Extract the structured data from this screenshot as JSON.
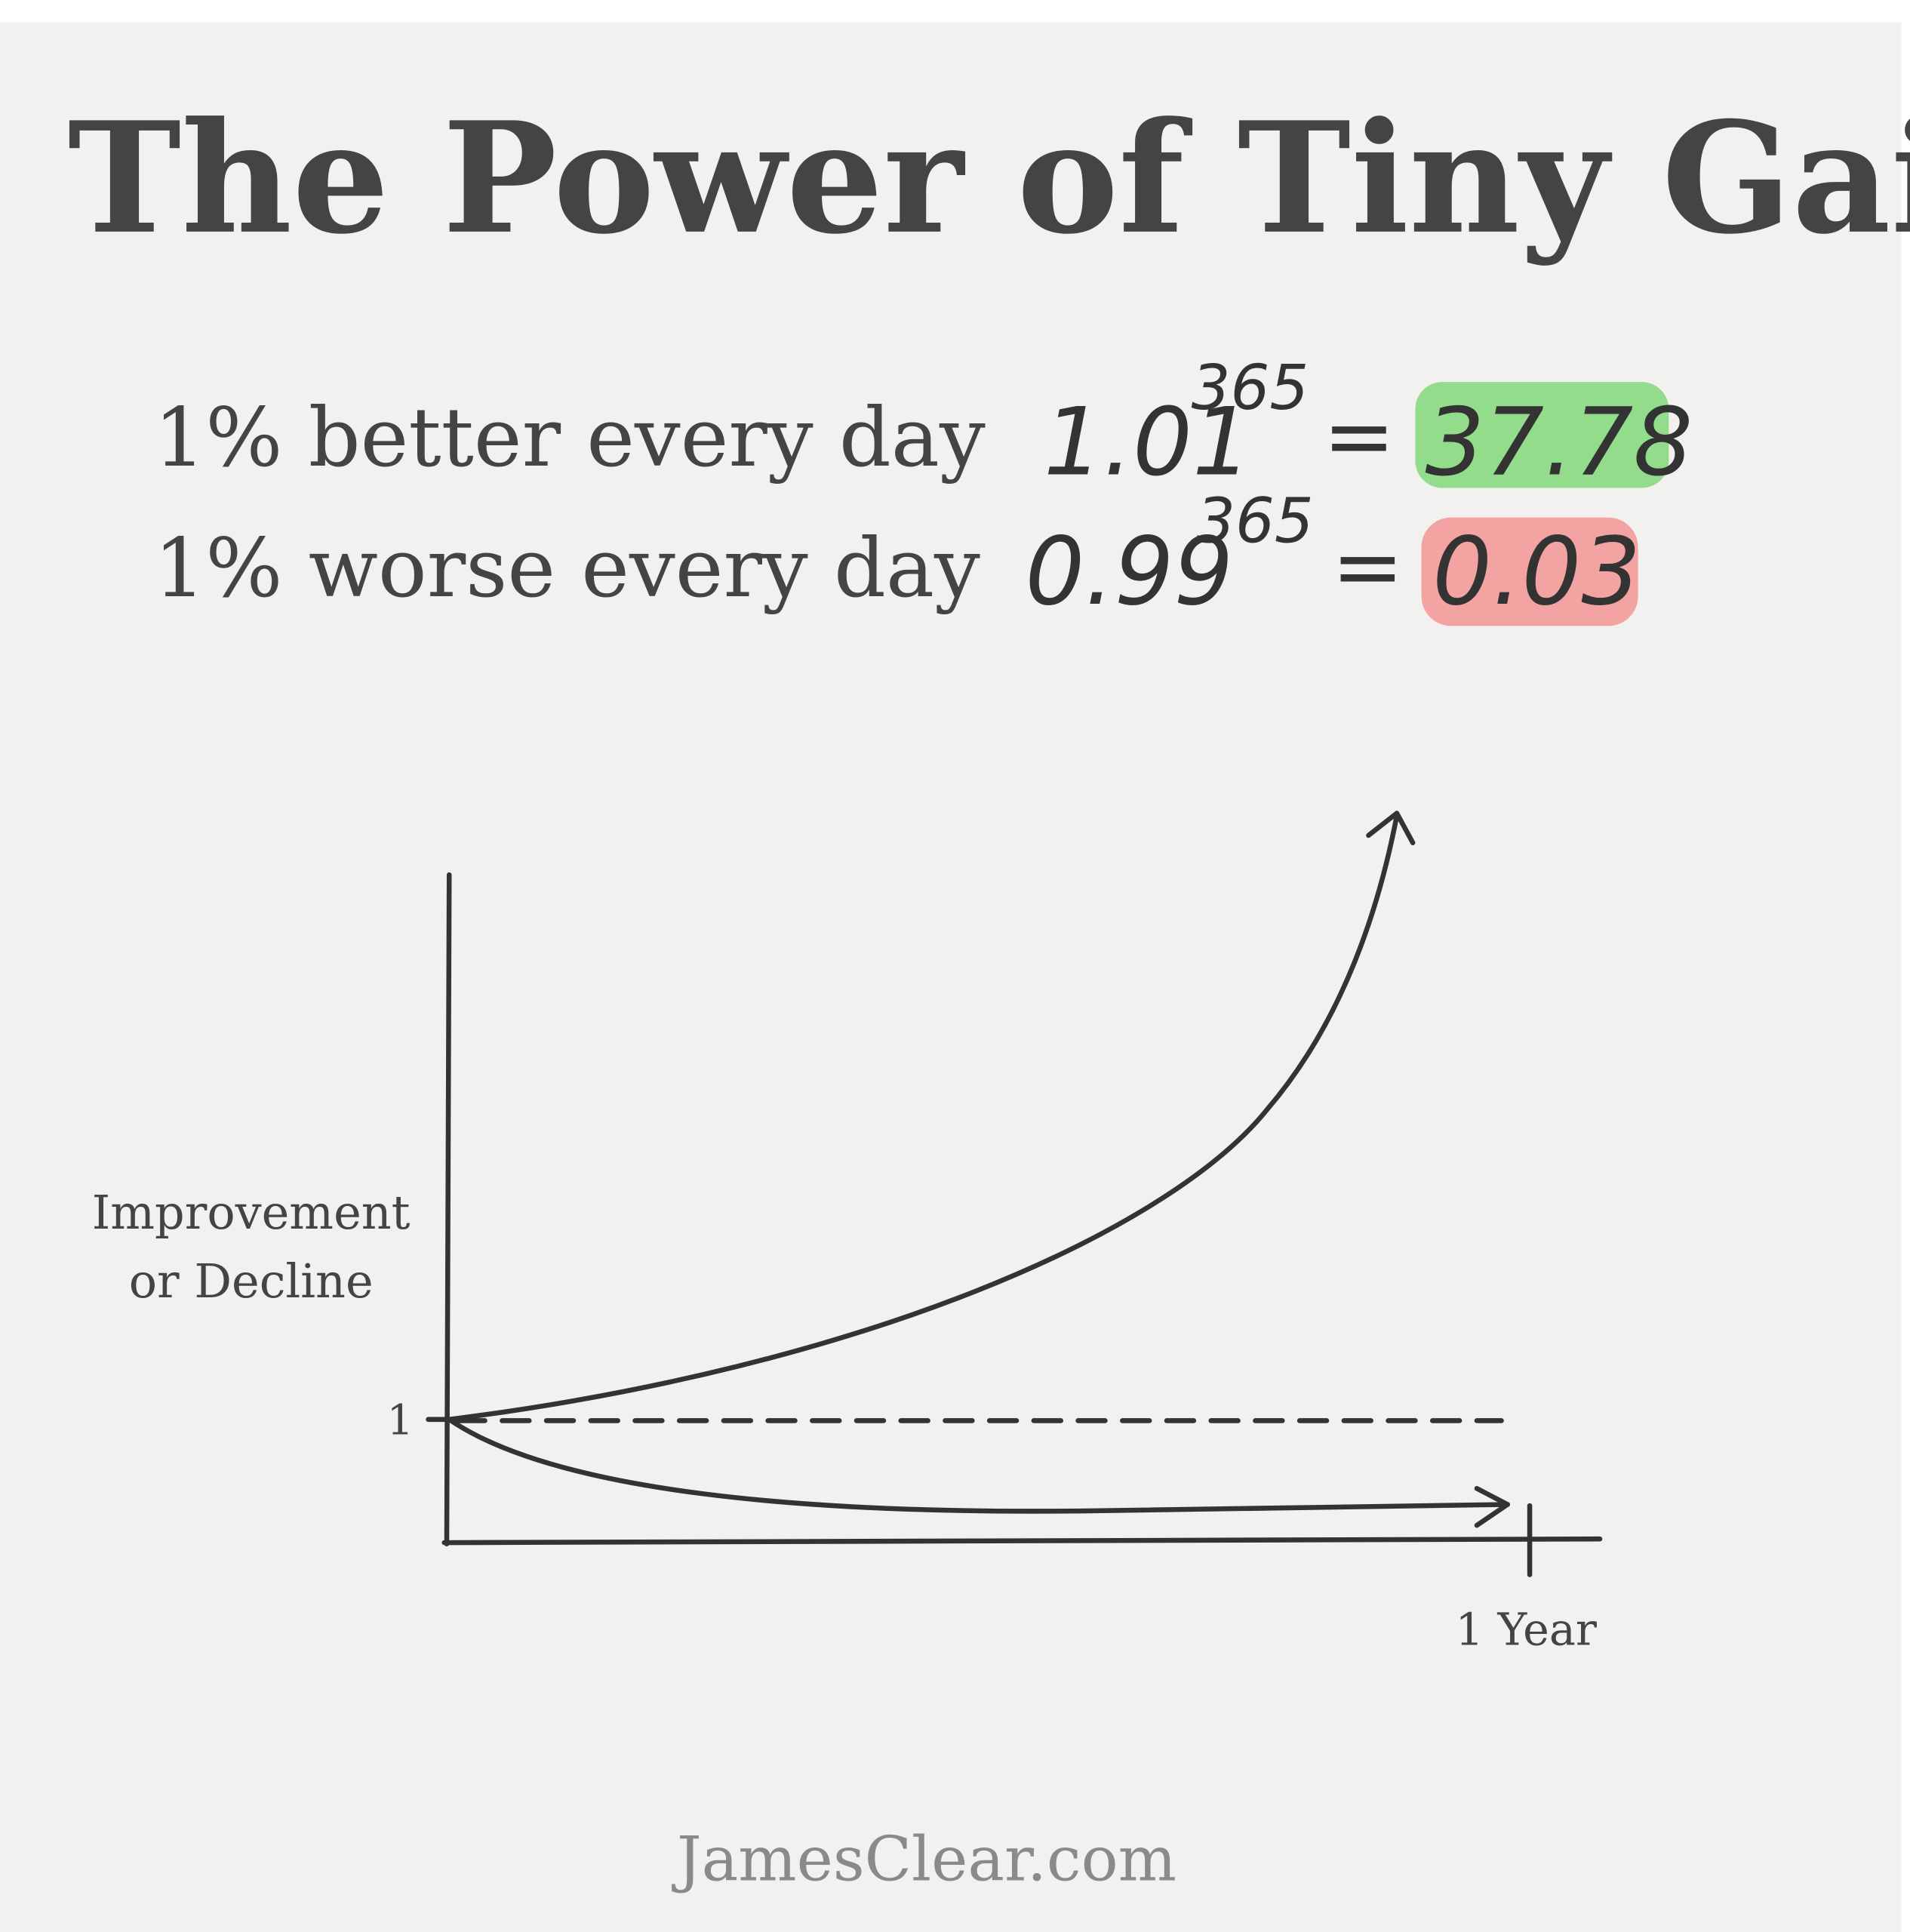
{
  "title": "The Power of Tiny Gains",
  "rows": [
    {
      "label": "1% better every day",
      "base": "1.01",
      "exponent": "365",
      "equals": "=",
      "result": "37.78"
    },
    {
      "label": "1% worse every day",
      "base": "0.99",
      "exponent": "365",
      "equals": "=",
      "result": "0.03"
    }
  ],
  "chart": {
    "y_label": [
      "Improvement",
      "or Decline"
    ],
    "y_tick": "1",
    "x_tick": "1 Year"
  },
  "footer": "JamesClear.com"
}
